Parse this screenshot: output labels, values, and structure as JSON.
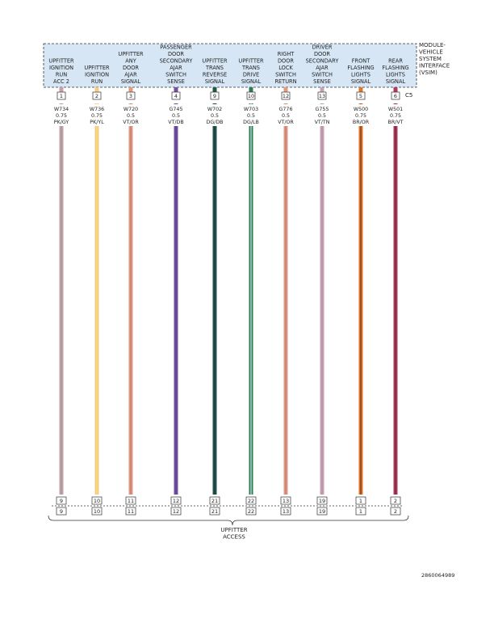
{
  "module": {
    "label_lines": [
      "MODULE-",
      "VEHICLE",
      "SYSTEM",
      "INTERFACE",
      "(VSIM)"
    ],
    "connector": "C5"
  },
  "circuits": [
    {
      "pin": "1",
      "label_lines": [
        "UPFITTER",
        "IGNITION",
        "RUN",
        "ACC 2"
      ],
      "wire": "W734",
      "gauge": "0.75",
      "color_code": "PK/GY",
      "end_pin": "9",
      "stripe_base": "#c9a0a8",
      "stripe_accent": "#9a9a9a"
    },
    {
      "pin": "2",
      "label_lines": [
        "UPFITTER",
        "IGNITION",
        "RUN"
      ],
      "wire": "W736",
      "gauge": "0.75",
      "color_code": "PK/YL",
      "end_pin": "10",
      "stripe_base": "#f7c97e",
      "stripe_accent": "#f3e27a"
    },
    {
      "pin": "3",
      "label_lines": [
        "UPFITTER",
        "ANY",
        "DOOR",
        "AJAR",
        "SIGNAL"
      ],
      "wire": "W720",
      "gauge": "0.5",
      "color_code": "VT/OR",
      "end_pin": "11",
      "stripe_base": "#e29a78",
      "stripe_accent": "#c07a8a"
    },
    {
      "pin": "4",
      "label_lines": [
        "PASSENGER",
        "DOOR",
        "SECONDARY",
        "AJAR",
        "SWITCH",
        "SENSE"
      ],
      "wire": "G745",
      "gauge": "0.5",
      "color_code": "VT/DB",
      "end_pin": "12",
      "stripe_base": "#7b4c9e",
      "stripe_accent": "#3d4f9c"
    },
    {
      "pin": "9",
      "label_lines": [
        "UPFITTER",
        "TRANS",
        "REVERSE",
        "SIGNAL"
      ],
      "wire": "W702",
      "gauge": "0.5",
      "color_code": "DG/DB",
      "end_pin": "21",
      "stripe_base": "#1f5a3e",
      "stripe_accent": "#1d2f6b"
    },
    {
      "pin": "10",
      "label_lines": [
        "UPFITTER",
        "TRANS",
        "DRIVE",
        "SIGNAL"
      ],
      "wire": "W703",
      "gauge": "0.5",
      "color_code": "DG/LB",
      "end_pin": "22",
      "stripe_base": "#2f7a4f",
      "stripe_accent": "#cfe8f0"
    },
    {
      "pin": "12",
      "label_lines": [
        "RIGHT",
        "DOOR",
        "LOCK",
        "SWITCH",
        "RETURN"
      ],
      "wire": "G776",
      "gauge": "0.5",
      "color_code": "VT/OR",
      "end_pin": "13",
      "stripe_base": "#e29a78",
      "stripe_accent": "#c07a8a"
    },
    {
      "pin": "13",
      "label_lines": [
        "DRIVER",
        "DOOR",
        "SECONDARY",
        "AJAR",
        "SWITCH",
        "SENSE"
      ],
      "wire": "G755",
      "gauge": "0.5",
      "color_code": "VT/TN",
      "end_pin": "19",
      "stripe_base": "#c9a0b4",
      "stripe_accent": "#b58fa8"
    },
    {
      "pin": "5",
      "label_lines": [
        "FRONT",
        "FLASHING",
        "LIGHTS",
        "SIGNAL"
      ],
      "wire": "W500",
      "gauge": "0.75",
      "color_code": "BR/OR",
      "end_pin": "1",
      "stripe_base": "#e0762e",
      "stripe_accent": "#7a3a1a"
    },
    {
      "pin": "6",
      "label_lines": [
        "REAR",
        "FLASHING",
        "LIGHTS",
        "SIGNAL"
      ],
      "wire": "W501",
      "gauge": "0.75",
      "color_code": "BR/VT",
      "end_pin": "2",
      "stripe_base": "#b03a5a",
      "stripe_accent": "#6a2a3a"
    }
  ],
  "destination": {
    "label_lines": [
      "UPFITTER",
      "ACCESS"
    ]
  },
  "figure_id": "2860064989",
  "colors": {
    "module_fill": "#d6e6f5",
    "line": "#333333"
  }
}
